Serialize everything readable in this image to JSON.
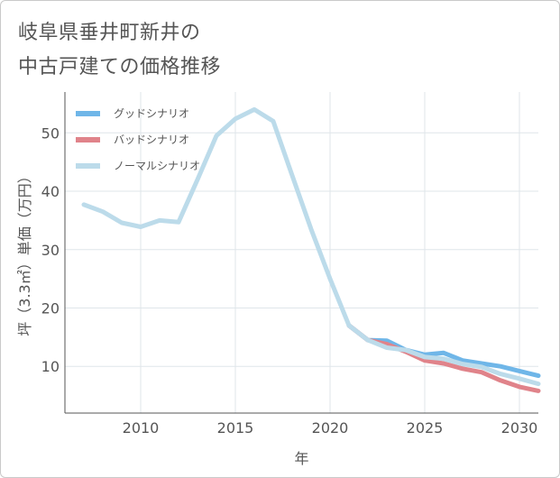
{
  "title": {
    "line1": "岐阜県垂井町新井の",
    "line2": "中古戸建ての価格推移"
  },
  "chart_data": {
    "type": "line",
    "xlabel": "年",
    "ylabel": "坪（3.3㎡）単価（万円）",
    "xlim": [
      2006,
      2031
    ],
    "ylim": [
      2,
      57
    ],
    "x_ticks": [
      2010,
      2015,
      2020,
      2025,
      2030
    ],
    "y_ticks": [
      10,
      20,
      30,
      40,
      50
    ],
    "grid": true,
    "legend_position": "top-left",
    "series": [
      {
        "name": "グッドシナリオ",
        "color": "#6fb6e8",
        "x": [
          2021,
          2022,
          2023,
          2024,
          2025,
          2026,
          2027,
          2028,
          2029,
          2030,
          2031
        ],
        "y": [
          17.0,
          14.5,
          14.4,
          12.8,
          12.0,
          12.3,
          11.0,
          10.5,
          10.0,
          9.2,
          8.4
        ]
      },
      {
        "name": "バッドシナリオ",
        "color": "#e0838a",
        "x": [
          2021,
          2022,
          2023,
          2024,
          2025,
          2026,
          2027,
          2028,
          2029,
          2030,
          2031
        ],
        "y": [
          17.0,
          14.5,
          13.8,
          12.5,
          11.0,
          10.5,
          9.6,
          9.0,
          7.6,
          6.5,
          5.8
        ]
      },
      {
        "name": "ノーマルシナリオ",
        "color": "#bcdbea",
        "x": [
          2007,
          2008,
          2009,
          2010,
          2011,
          2012,
          2013,
          2014,
          2015,
          2016,
          2017,
          2018,
          2019,
          2020,
          2021,
          2022,
          2023,
          2024,
          2025,
          2026,
          2027,
          2028,
          2029,
          2030,
          2031
        ],
        "y": [
          37.7,
          36.5,
          34.6,
          33.9,
          35.0,
          34.7,
          42.0,
          49.5,
          52.4,
          54.0,
          52.0,
          42.7,
          33.5,
          25.0,
          17.0,
          14.5,
          13.2,
          12.8,
          11.6,
          11.3,
          10.4,
          9.9,
          8.7,
          7.9,
          7.0
        ]
      }
    ]
  }
}
